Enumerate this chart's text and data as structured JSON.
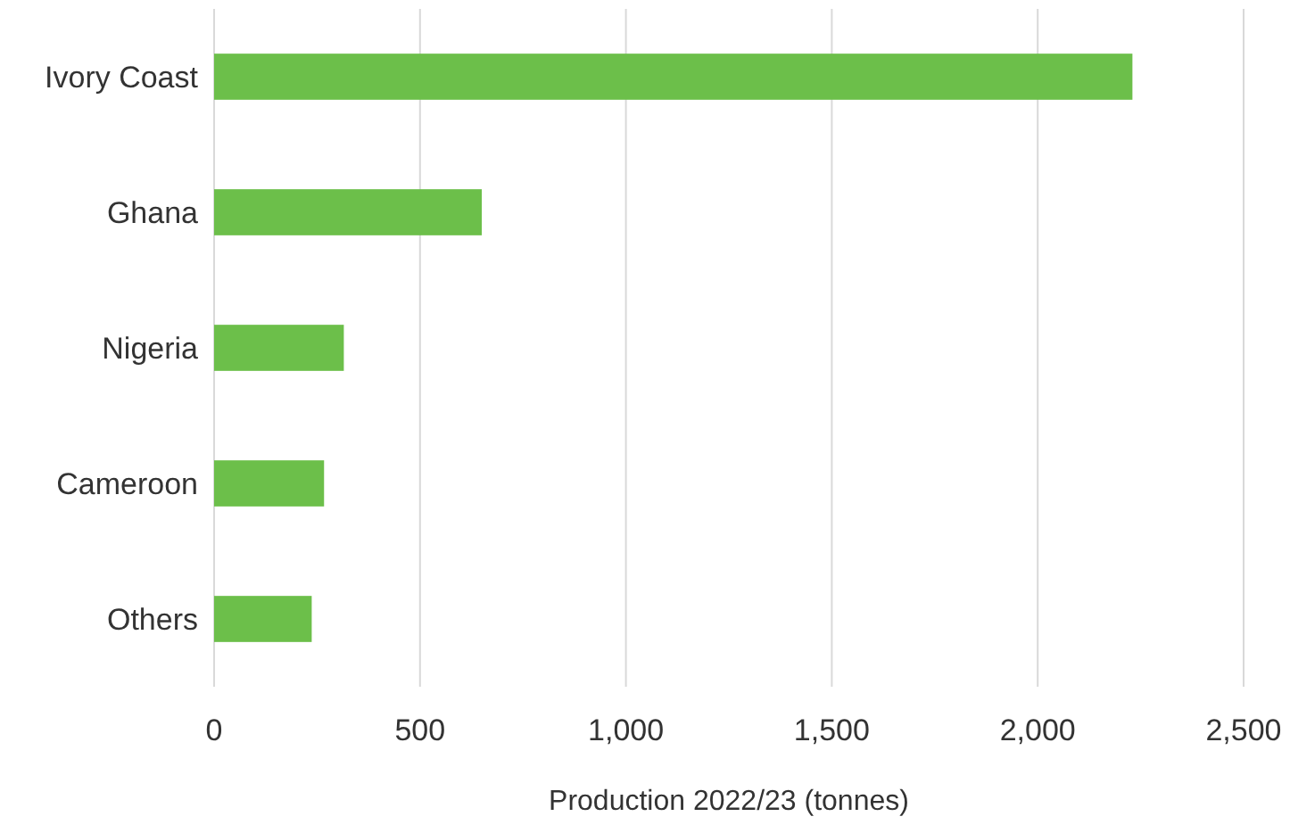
{
  "chart_data": {
    "type": "bar",
    "orientation": "horizontal",
    "categories": [
      "Ivory Coast",
      "Ghana",
      "Nigeria",
      "Cameroon",
      "Others"
    ],
    "values": [
      2230,
      650,
      315,
      267,
      237
    ],
    "color": "#6cbf4a",
    "xlim": [
      0,
      2500
    ],
    "xticks": [
      0,
      {
        "value": 500,
        "label": "500"
      },
      {
        "value": 1000,
        "label": "1,000"
      },
      {
        "value": 1500,
        "label": "1,500"
      },
      {
        "value": 2000,
        "label": "2,000"
      },
      {
        "value": 2500,
        "label": "2,500"
      }
    ],
    "xlabel": "Production 2022/23 (tonnes)",
    "grid": "x"
  }
}
